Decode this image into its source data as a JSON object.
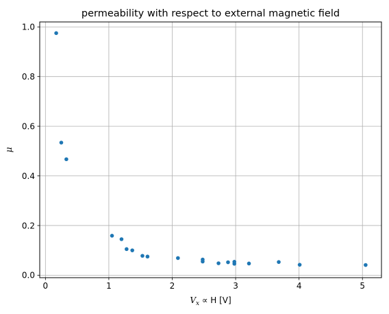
{
  "chart_data": {
    "type": "scatter",
    "title": "permeability with respect to external magnetic field",
    "xlabel": {
      "var": "V",
      "sub": "x",
      "rest": " ∝ H [V]"
    },
    "ylabel": "μ",
    "xlim": [
      -0.09,
      5.3
    ],
    "ylim": [
      -0.01,
      1.02
    ],
    "xticks": [
      0,
      1,
      2,
      3,
      4,
      5
    ],
    "xtick_labels": [
      "0",
      "1",
      "2",
      "3",
      "4",
      "5"
    ],
    "yticks": [
      0.0,
      0.2,
      0.4,
      0.6,
      0.8,
      1.0
    ],
    "ytick_labels": [
      "0.0",
      "0.2",
      "0.4",
      "0.6",
      "0.8",
      "1.0"
    ],
    "grid": true,
    "marker_color": "#1f77b4",
    "points": [
      {
        "x": 0.17,
        "y": 0.975
      },
      {
        "x": 0.25,
        "y": 0.534
      },
      {
        "x": 0.33,
        "y": 0.467
      },
      {
        "x": 1.05,
        "y": 0.159
      },
      {
        "x": 1.2,
        "y": 0.145
      },
      {
        "x": 1.28,
        "y": 0.105
      },
      {
        "x": 1.37,
        "y": 0.1
      },
      {
        "x": 1.53,
        "y": 0.078
      },
      {
        "x": 1.61,
        "y": 0.075
      },
      {
        "x": 2.09,
        "y": 0.069
      },
      {
        "x": 2.48,
        "y": 0.063
      },
      {
        "x": 2.48,
        "y": 0.055
      },
      {
        "x": 2.73,
        "y": 0.048
      },
      {
        "x": 2.88,
        "y": 0.052
      },
      {
        "x": 2.98,
        "y": 0.054
      },
      {
        "x": 2.98,
        "y": 0.046
      },
      {
        "x": 3.21,
        "y": 0.047
      },
      {
        "x": 3.68,
        "y": 0.053
      },
      {
        "x": 4.01,
        "y": 0.042
      },
      {
        "x": 5.05,
        "y": 0.041
      }
    ]
  }
}
